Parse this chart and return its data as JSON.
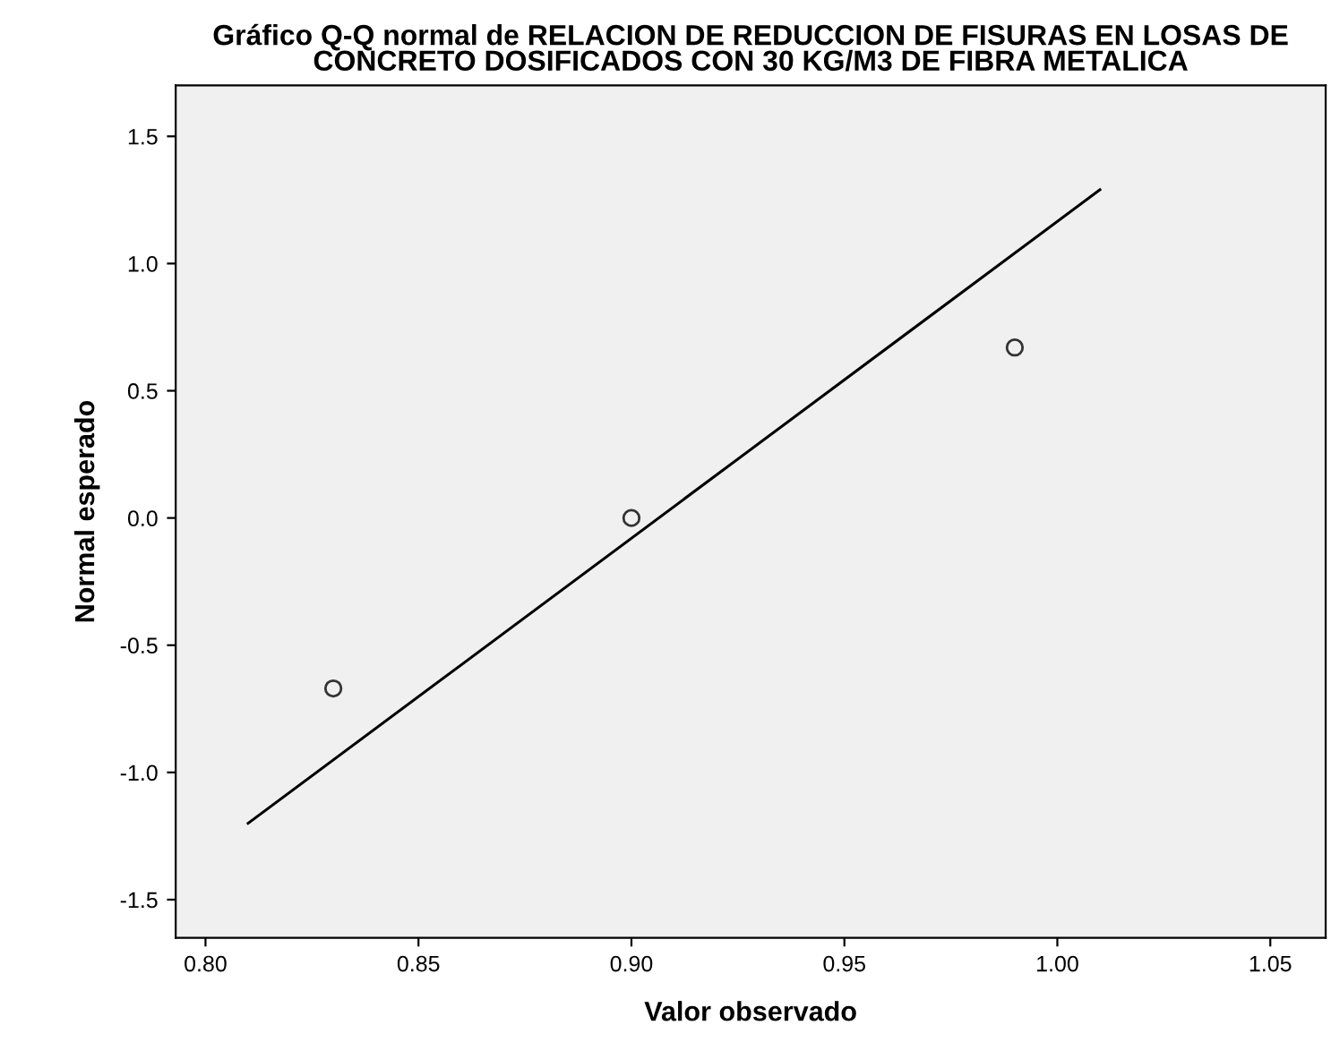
{
  "chart_data": {
    "type": "scatter",
    "title": "Gráfico Q-Q normal de RELACION DE REDUCCION DE FISURAS EN LOSAS DE\nCONCRETO DOSIFICADOS CON 30 KG/M3 DE FIBRA METALICA",
    "xlabel": "Valor observado",
    "ylabel": "Normal esperado",
    "xlim": [
      0.793,
      1.063
    ],
    "ylim": [
      -1.65,
      1.7
    ],
    "xticks": [
      {
        "value": 0.8,
        "label": "0.80"
      },
      {
        "value": 0.85,
        "label": "0.85"
      },
      {
        "value": 0.9,
        "label": "0.90"
      },
      {
        "value": 0.95,
        "label": "0.95"
      },
      {
        "value": 1.0,
        "label": "1.00"
      },
      {
        "value": 1.05,
        "label": "1.05"
      }
    ],
    "yticks": [
      {
        "value": -1.5,
        "label": "-1.5"
      },
      {
        "value": -1.0,
        "label": "-1.0"
      },
      {
        "value": -0.5,
        "label": "-0.5"
      },
      {
        "value": 0.0,
        "label": "0.0"
      },
      {
        "value": 0.5,
        "label": "0.5"
      },
      {
        "value": 1.0,
        "label": "1.0"
      },
      {
        "value": 1.5,
        "label": "1.5"
      }
    ],
    "grid": false,
    "legend": false,
    "series": [
      {
        "color": "#333333",
        "marker": "circle",
        "x": [
          0.83,
          0.9,
          0.99
        ],
        "values": [
          -0.67,
          0.0,
          0.67
        ]
      },
      {
        "type": "line",
        "color": "#000000",
        "marker": "none",
        "line_style": "solid",
        "x": [
          0.81,
          1.01
        ],
        "values": [
          -1.2,
          1.29
        ]
      }
    ]
  }
}
